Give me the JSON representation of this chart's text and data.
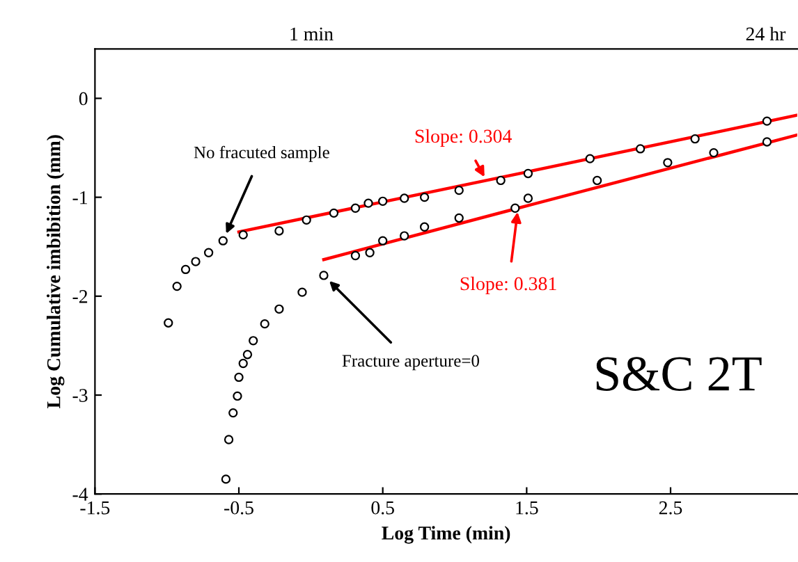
{
  "chart_data": {
    "type": "scatter",
    "xlabel": "Log Time (min)",
    "ylabel": "Log Cumulative imbibition (mm)",
    "xlim": [
      -1.5,
      3.38
    ],
    "xticks": [
      -1.5,
      -0.5,
      0.5,
      1.5,
      2.5
    ],
    "ylim": [
      -4,
      0.5
    ],
    "yticks": [
      -4,
      -3,
      -2,
      -1,
      0
    ],
    "marker": "circle",
    "grid": false,
    "series": [
      {
        "color": "#000000",
        "x": [
          -0.99,
          -0.93,
          -0.87,
          -0.8,
          -0.71,
          -0.61,
          -0.47,
          -0.22,
          -0.03,
          0.16,
          0.31,
          0.4,
          0.5,
          0.65,
          0.79,
          1.03,
          1.32,
          1.51,
          1.94,
          2.29,
          2.67,
          3.17
        ],
        "values": [
          -2.27,
          -1.9,
          -1.73,
          -1.65,
          -1.56,
          -1.44,
          -1.38,
          -1.34,
          -1.23,
          -1.16,
          -1.11,
          -1.06,
          -1.04,
          -1.01,
          -1.0,
          -0.93,
          -0.83,
          -0.76,
          -0.61,
          -0.51,
          -0.41,
          -0.23
        ]
      },
      {
        "color": "#000000",
        "x": [
          -0.59,
          -0.57,
          -0.54,
          -0.51,
          -0.5,
          -0.47,
          -0.44,
          -0.4,
          -0.32,
          -0.22,
          -0.06,
          0.09,
          0.31,
          0.41,
          0.5,
          0.65,
          0.79,
          1.03,
          1.42,
          1.51,
          1.99,
          2.48,
          2.8,
          3.17
        ],
        "values": [
          -3.85,
          -3.45,
          -3.18,
          -3.01,
          -2.82,
          -2.68,
          -2.59,
          -2.45,
          -2.28,
          -2.13,
          -1.96,
          -1.79,
          -1.59,
          -1.56,
          -1.44,
          -1.39,
          -1.3,
          -1.21,
          -1.11,
          -1.01,
          -0.83,
          -0.65,
          -0.55,
          -0.44
        ]
      },
      {
        "type": "line",
        "name": "Slope: 0.304",
        "color": "#ff0000",
        "marker": "none",
        "x": [
          -0.5,
          1.22,
          3.38
        ],
        "values": [
          -1.35,
          -0.83,
          -0.17
        ]
      },
      {
        "type": "line",
        "name": "Slope: 0.381",
        "color": "#ff0000",
        "marker": "none",
        "x": [
          0.09,
          1.44,
          3.38
        ],
        "values": [
          -1.63,
          -1.11,
          -0.37
        ]
      }
    ],
    "annotations": [
      {
        "text": "No fracuted sample",
        "x": -0.61,
        "y": -1.44
      },
      {
        "text": "Fracture aperture=0",
        "x": 0.09,
        "y": -1.79
      },
      "S&C 2T",
      "1 min",
      "24 hr"
    ]
  }
}
